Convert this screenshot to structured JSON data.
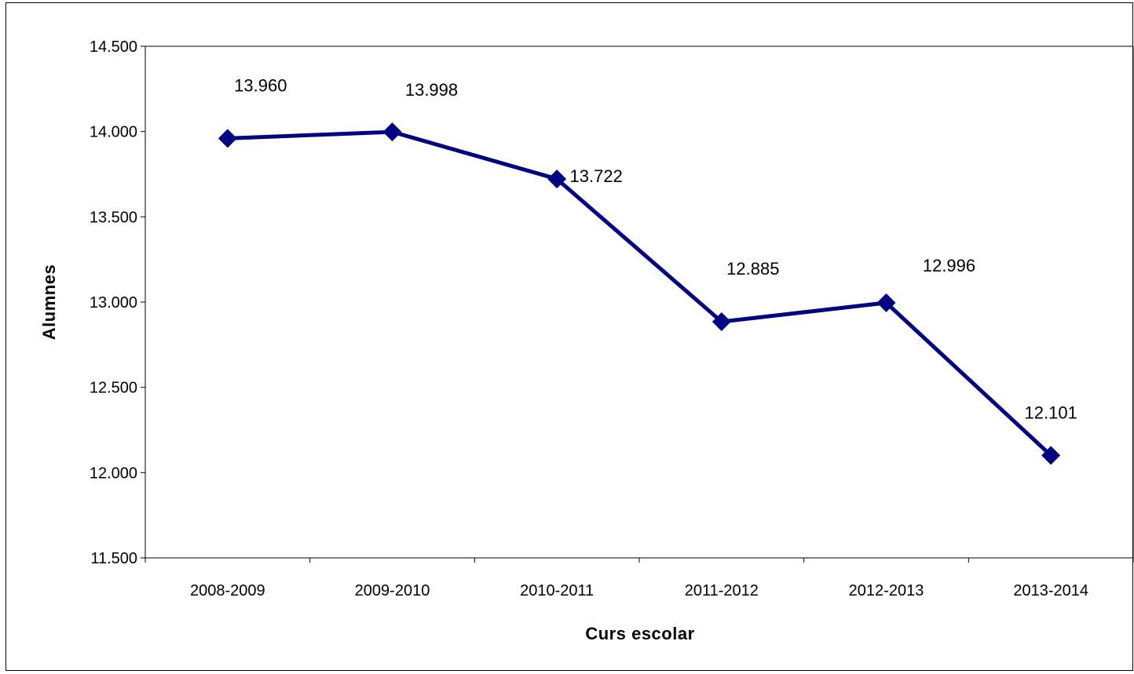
{
  "chart_data": {
    "type": "line",
    "title": "",
    "xlabel": "Curs escolar",
    "ylabel": "Alumnes",
    "categories": [
      "2008-2009",
      "2009-2010",
      "2010-2011",
      "2011-2012",
      "2012-2013",
      "2013-2014"
    ],
    "series": [
      {
        "values": [
          13960,
          13998,
          13722,
          12885,
          12996,
          12101
        ],
        "labels": [
          "13.960",
          "13.998",
          "13.722",
          "12.885",
          "12.996",
          "12.101"
        ],
        "color": "#000080",
        "marker": "diamond"
      }
    ],
    "ylim": [
      11500,
      14500
    ],
    "yticks": [
      11500,
      12000,
      12500,
      13000,
      13500,
      14000,
      14500
    ],
    "ytick_labels": [
      "11.500",
      "12.000",
      "12.500",
      "13.000",
      "13.500",
      "14.000",
      "14.500"
    ],
    "grid": false,
    "legend": "none"
  }
}
